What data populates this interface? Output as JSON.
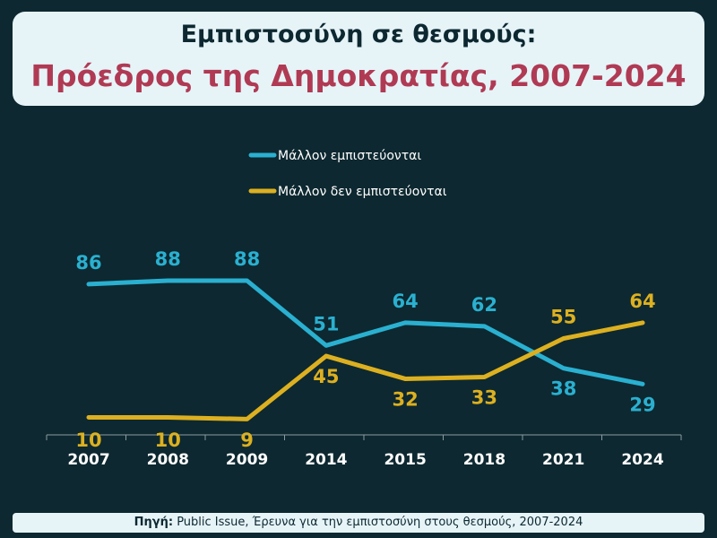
{
  "title": {
    "line1": "Εμπιστοσύνη σε θεσμούς:",
    "line2": "Πρόεδρος της Δημοκρατίας, 2007-2024"
  },
  "source": {
    "label": "Πηγή:",
    "text": " Public Issue, Έρευνα για την εμπιστοσύνη στους θεσμούς, 2007-2024"
  },
  "chart_data": {
    "type": "line",
    "categories": [
      "2007",
      "2008",
      "2009",
      "2014",
      "2015",
      "2018",
      "2021",
      "2024"
    ],
    "series": [
      {
        "name": "Μάλλον εμπιστεύονται",
        "color": "#2ab0d0",
        "values": [
          86,
          88,
          88,
          51,
          64,
          62,
          38,
          29
        ]
      },
      {
        "name": "Μάλλον δεν εμπιστεύονται",
        "color": "#dcb020",
        "values": [
          10,
          10,
          9,
          45,
          32,
          33,
          55,
          64
        ]
      }
    ],
    "ylim": [
      0,
      100
    ],
    "grid": false,
    "legend": "top-center"
  }
}
